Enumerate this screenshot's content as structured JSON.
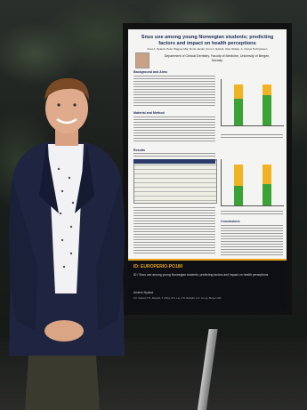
{
  "poster": {
    "title": "Snus use among young Norwegian students; predicting factors and impact on health perceptions",
    "authors": "Knut A. Nyland, Peter Wagner-Mai, Dorte Jacobi, Knut A. Nyland, Olav Wollan, A. Opriye Terbrydesen",
    "department": "Department of Clinical Dentistry, Faculty of Medicine, University of Bergen, Norway",
    "sections": {
      "background": "Background and Aims",
      "methods": "Material and Method",
      "results": "Results",
      "conclusions": "Conclusions"
    }
  },
  "banner": {
    "code": "ID: EUROPERIO-PO180",
    "subtitle": "ID / Snus use among young Norwegian students; predicting factors and impact on health perceptions",
    "presenter": "Anders Nyland",
    "coauthors": "K.F. Nyland, T.N. Rantahi, T. Olshy, R.K. Lie, A.N. Rantahi, A.N. Lie og, Bergen Old"
  },
  "chart_colors": {
    "green": "#3aa336",
    "yellow": "#f0b323"
  }
}
